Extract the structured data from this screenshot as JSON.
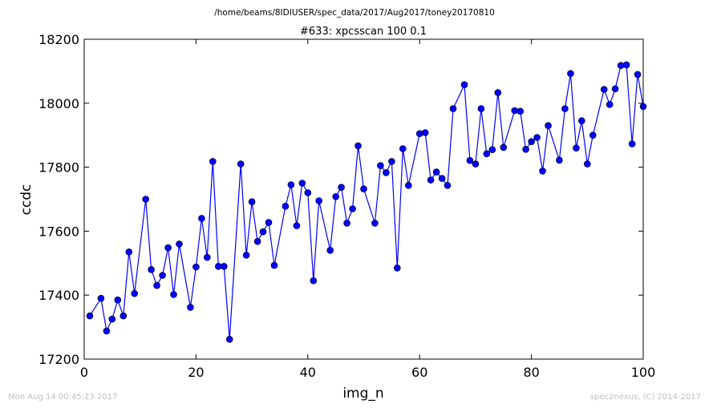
{
  "suptitle": "/home/beams/8IDIUSER/spec_data/2017/Aug2017/toney20170810",
  "footer_left": "Mon Aug 14 00:45:23 2017",
  "footer_right": "spec2nexus, (C) 2014-2017",
  "colors": {
    "series": "#0000ff",
    "frame": "#000000",
    "footer": "#bfbfbf"
  },
  "chart_data": {
    "type": "line",
    "title": "#633: xpcsscan 100 0.1",
    "xlabel": "img_n",
    "ylabel": "ccdc",
    "xlim": [
      0,
      100
    ],
    "ylim": [
      17200,
      18200
    ],
    "xticks": [
      0,
      20,
      40,
      60,
      80,
      100
    ],
    "yticks": [
      17200,
      17400,
      17600,
      17800,
      18000,
      18200
    ],
    "grid": false,
    "marker": "circle",
    "series": [
      {
        "x": [
          1,
          3,
          4,
          5,
          6,
          7,
          8,
          9,
          11,
          12,
          13,
          14,
          15,
          16,
          17,
          19,
          20,
          21,
          22,
          23,
          24,
          25,
          26,
          28,
          29,
          30,
          31,
          32,
          33,
          34,
          36,
          37,
          38,
          39,
          40,
          41,
          42,
          44,
          45,
          46,
          47,
          48,
          49,
          50,
          52,
          53,
          54,
          55,
          56,
          57,
          58,
          60,
          61,
          62,
          63,
          64,
          65,
          66,
          68,
          69,
          70,
          71,
          72,
          73,
          74,
          75,
          77,
          78,
          79,
          80,
          81,
          82,
          83,
          85,
          86,
          87,
          88,
          89,
          90,
          91,
          93,
          94,
          95,
          96,
          97,
          98,
          99,
          100
        ],
        "y": [
          17335,
          17390,
          17288,
          17325,
          17385,
          17335,
          17535,
          17405,
          17700,
          17480,
          17430,
          17462,
          17548,
          17402,
          17560,
          17362,
          17488,
          17640,
          17518,
          17818,
          17490,
          17490,
          17262,
          17810,
          17525,
          17692,
          17568,
          17598,
          17627,
          17493,
          17678,
          17745,
          17617,
          17750,
          17720,
          17445,
          17695,
          17540,
          17708,
          17737,
          17625,
          17670,
          17867,
          17732,
          17625,
          17805,
          17783,
          17818,
          17485,
          17858,
          17743,
          17905,
          17908,
          17760,
          17785,
          17765,
          17743,
          17983,
          18058,
          17821,
          17810,
          17983,
          17842,
          17855,
          18033,
          17862,
          17977,
          17975,
          17856,
          17880,
          17893,
          17788,
          17930,
          17822,
          17983,
          18093,
          17860,
          17945,
          17810,
          17900,
          18043,
          17996,
          18045,
          18118,
          18120,
          17873,
          18090,
          17990
        ]
      }
    ]
  }
}
